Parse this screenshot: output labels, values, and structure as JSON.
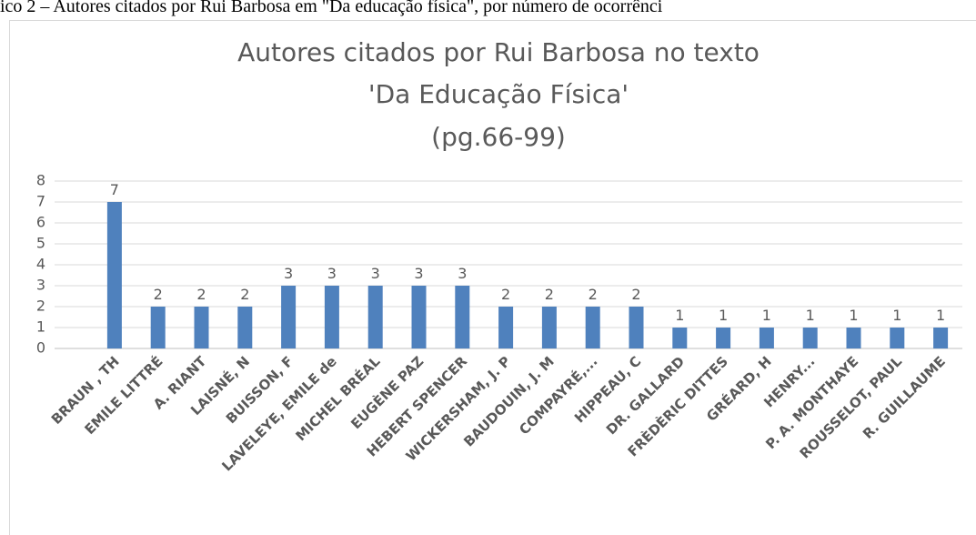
{
  "caption": "ico 2 – Autores citados por Rui Barbosa em \"Da educação física\", por número de ocorrênci",
  "chart_data": {
    "type": "bar",
    "title": [
      "Autores citados por Rui Barbosa no texto",
      "'Da Educação Física'",
      "(pg.66-99)"
    ],
    "categories": [
      "BRAUN , TH",
      "EMILE LITTRÉ",
      "A. RIANT",
      "LAISNÉ, N",
      "BUISSON, F",
      "LAVELEYE, EMILE de",
      "MICHEL BRÉAL",
      "EUGÈNE PAZ",
      "HEBERT SPENCER",
      "WICKERSHAM, J. P",
      "BAUDOUIN, J. M",
      "COMPAYRÉ,...",
      "HIPPEAU, C",
      "DR. GALLARD",
      "FRÈDÈRIC DITTES",
      "GRÉARD, H",
      "HENRY...",
      "P. A. MONTHAYE",
      "ROUSSELOT, PAUL",
      "R. GUILLAUME"
    ],
    "values": [
      7,
      2,
      2,
      2,
      3,
      3,
      3,
      3,
      3,
      2,
      2,
      2,
      2,
      1,
      1,
      1,
      1,
      1,
      1,
      1
    ],
    "color": "#4f81bd",
    "ylim": [
      0,
      8
    ],
    "yticks": [
      0,
      1,
      2,
      3,
      4,
      5,
      6,
      7,
      8
    ],
    "grid": true
  }
}
